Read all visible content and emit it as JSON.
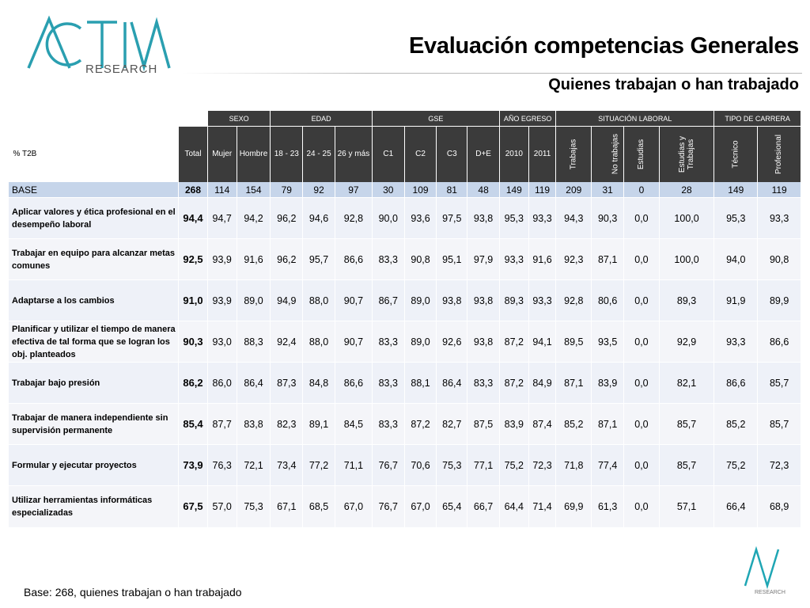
{
  "header": {
    "logo_text": "ACTIVA RESEARCH",
    "title": "Evaluación competencias Generales",
    "subtitle": "Quienes trabajan o han trabajado"
  },
  "table": {
    "corner_label": "% T2B",
    "groups": [
      {
        "label": "SEXO",
        "span": 2
      },
      {
        "label": "EDAD",
        "span": 3
      },
      {
        "label": "GSE",
        "span": 4
      },
      {
        "label": "AÑO EGRESO",
        "span": 2
      },
      {
        "label": "SITUACIÓN LABORAL",
        "span": 4
      },
      {
        "label": "TIPO DE CARRERA",
        "span": 2
      }
    ],
    "columns": [
      {
        "label": "Total",
        "vertical": false
      },
      {
        "label": "Mujer",
        "vertical": false
      },
      {
        "label": "Hombre",
        "vertical": false
      },
      {
        "label": "18 - 23",
        "vertical": false
      },
      {
        "label": "24 - 25",
        "vertical": false
      },
      {
        "label": "26 y más",
        "vertical": false
      },
      {
        "label": "C1",
        "vertical": false
      },
      {
        "label": "C2",
        "vertical": false
      },
      {
        "label": "C3",
        "vertical": false
      },
      {
        "label": "D+E",
        "vertical": false
      },
      {
        "label": "2010",
        "vertical": false
      },
      {
        "label": "2011",
        "vertical": false
      },
      {
        "label": "Trabajas",
        "vertical": true
      },
      {
        "label": "No trabajas",
        "vertical": true
      },
      {
        "label": "Estudias",
        "vertical": true
      },
      {
        "label": "Estudias y Trabajas",
        "vertical": true
      },
      {
        "label": "Técnico",
        "vertical": true
      },
      {
        "label": "Profesional",
        "vertical": true
      }
    ],
    "base": {
      "label": "BASE",
      "values": [
        "268",
        "114",
        "154",
        "79",
        "92",
        "97",
        "30",
        "109",
        "81",
        "48",
        "149",
        "119",
        "209",
        "31",
        "0",
        "28",
        "149",
        "119"
      ]
    },
    "rows": [
      {
        "label": "Aplicar valores y ética profesional en el desempeño laboral",
        "values": [
          "94,4",
          "94,7",
          "94,2",
          "96,2",
          "94,6",
          "92,8",
          "90,0",
          "93,6",
          "97,5",
          "93,8",
          "95,3",
          "93,3",
          "94,3",
          "90,3",
          "0,0",
          "100,0",
          "95,3",
          "93,3"
        ]
      },
      {
        "label": "Trabajar en equipo para alcanzar metas comunes",
        "values": [
          "92,5",
          "93,9",
          "91,6",
          "96,2",
          "95,7",
          "86,6",
          "83,3",
          "90,8",
          "95,1",
          "97,9",
          "93,3",
          "91,6",
          "92,3",
          "87,1",
          "0,0",
          "100,0",
          "94,0",
          "90,8"
        ]
      },
      {
        "label": "Adaptarse a los cambios",
        "values": [
          "91,0",
          "93,9",
          "89,0",
          "94,9",
          "88,0",
          "90,7",
          "86,7",
          "89,0",
          "93,8",
          "93,8",
          "89,3",
          "93,3",
          "92,8",
          "80,6",
          "0,0",
          "89,3",
          "91,9",
          "89,9"
        ]
      },
      {
        "label": "Planificar y utilizar el tiempo de manera  efectiva de tal forma que se logran los obj. planteados",
        "values": [
          "90,3",
          "93,0",
          "88,3",
          "92,4",
          "88,0",
          "90,7",
          "83,3",
          "89,0",
          "92,6",
          "93,8",
          "87,2",
          "94,1",
          "89,5",
          "93,5",
          "0,0",
          "92,9",
          "93,3",
          "86,6"
        ]
      },
      {
        "label": "Trabajar bajo presión",
        "values": [
          "86,2",
          "86,0",
          "86,4",
          "87,3",
          "84,8",
          "86,6",
          "83,3",
          "88,1",
          "86,4",
          "83,3",
          "87,2",
          "84,9",
          "87,1",
          "83,9",
          "0,0",
          "82,1",
          "86,6",
          "85,7"
        ]
      },
      {
        "label": "Trabajar de manera independiente sin  supervisión permanente",
        "values": [
          "85,4",
          "87,7",
          "83,8",
          "82,3",
          "89,1",
          "84,5",
          "83,3",
          "87,2",
          "82,7",
          "87,5",
          "83,9",
          "87,4",
          "85,2",
          "87,1",
          "0,0",
          "85,7",
          "85,2",
          "85,7"
        ]
      },
      {
        "label": "Formular y ejecutar proyectos",
        "values": [
          "73,9",
          "76,3",
          "72,1",
          "73,4",
          "77,2",
          "71,1",
          "76,7",
          "70,6",
          "75,3",
          "77,1",
          "75,2",
          "72,3",
          "71,8",
          "77,4",
          "0,0",
          "85,7",
          "75,2",
          "72,3"
        ]
      },
      {
        "label": "Utilizar herramientas informáticas especializadas",
        "values": [
          "67,5",
          "57,0",
          "75,3",
          "67,1",
          "68,5",
          "67,0",
          "76,7",
          "67,0",
          "65,4",
          "66,7",
          "64,4",
          "71,4",
          "69,9",
          "61,3",
          "0,0",
          "57,1",
          "66,4",
          "68,9"
        ]
      }
    ]
  },
  "footer": {
    "note": "Base: 268, quienes trabajan o han trabajado",
    "brand_small": "RESEARCH"
  },
  "colors": {
    "header_dark": "#3b3b3b",
    "base_row": "#c6d5ea",
    "row_fill": "#eef1f8",
    "logo_teal": "#1fa6b4"
  }
}
